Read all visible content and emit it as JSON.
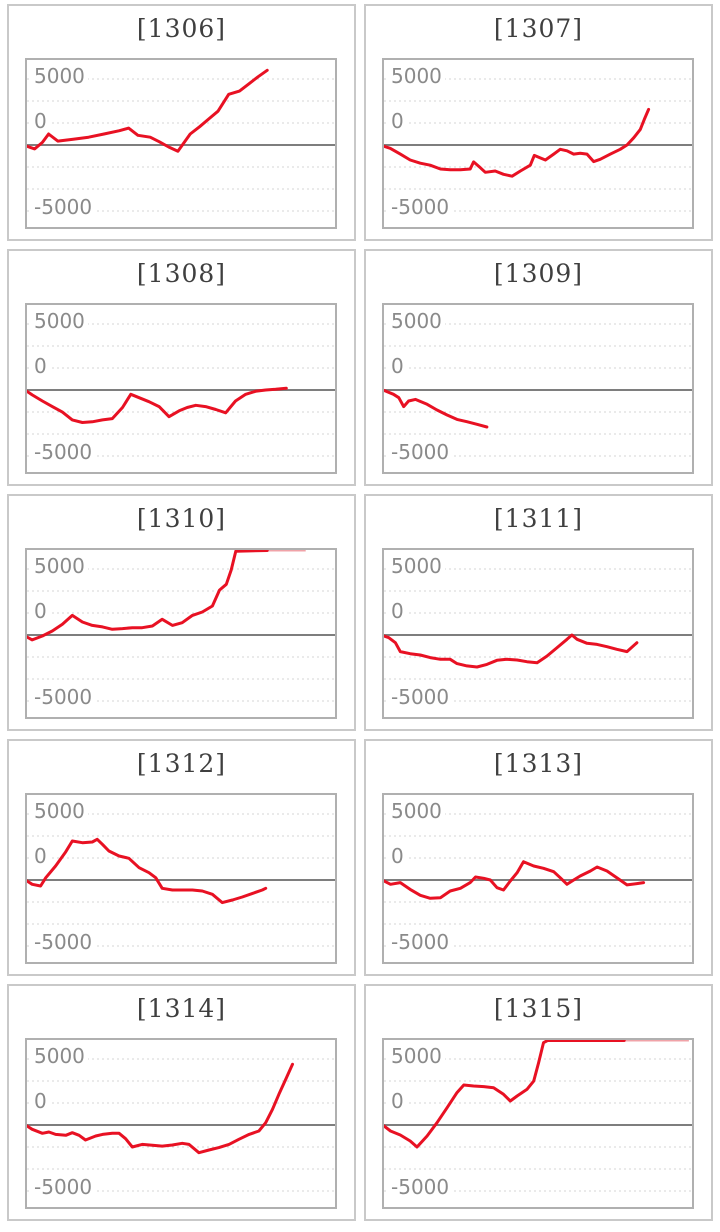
{
  "axis": {
    "y_labels": [
      "5000",
      "0",
      "-5000"
    ]
  },
  "colors": {
    "line": "#e81123",
    "line_clipped": "#f0a3a8",
    "grid": "#d4d4d4",
    "zero_line": "#7e7e7e",
    "plot_border": "#b0b0b0",
    "panel_border": "#c9c9c9",
    "label": "#8a8a8a",
    "title": "#3f3f3f",
    "background": "#ffffff"
  },
  "chart_data": [
    {
      "type": "line",
      "title": "[1306]",
      "y_ticks": [
        "5000",
        "0",
        "-5000"
      ],
      "ylim": [
        -6300,
        6500
      ],
      "grid": true,
      "points": [
        [
          0,
          -100
        ],
        [
          2.5,
          -300
        ],
        [
          5,
          200
        ],
        [
          7,
          850
        ],
        [
          10,
          300
        ],
        [
          15,
          450
        ],
        [
          20,
          600
        ],
        [
          25,
          850
        ],
        [
          30,
          1100
        ],
        [
          33,
          1300
        ],
        [
          36,
          750
        ],
        [
          40,
          600
        ],
        [
          43,
          250
        ],
        [
          46,
          -150
        ],
        [
          49,
          -480
        ],
        [
          53,
          850
        ],
        [
          56,
          1400
        ],
        [
          59,
          2000
        ],
        [
          62,
          2600
        ],
        [
          65.5,
          3900
        ],
        [
          69,
          4150
        ],
        [
          72,
          4700
        ],
        [
          75,
          5250
        ],
        [
          78,
          5750
        ]
      ]
    },
    {
      "type": "line",
      "title": "[1307]",
      "y_ticks": [
        "5000",
        "0",
        "-5000"
      ],
      "ylim": [
        -6300,
        6500
      ],
      "grid": true,
      "points": [
        [
          0,
          -100
        ],
        [
          2,
          -250
        ],
        [
          5.3,
          -700
        ],
        [
          8.5,
          -1150
        ],
        [
          11.8,
          -1400
        ],
        [
          15,
          -1550
        ],
        [
          18.3,
          -1850
        ],
        [
          21.5,
          -1900
        ],
        [
          24.8,
          -1900
        ],
        [
          28,
          -1850
        ],
        [
          29.1,
          -1300
        ],
        [
          31.3,
          -1750
        ],
        [
          32.9,
          -2100
        ],
        [
          36.1,
          -2000
        ],
        [
          38.8,
          -2250
        ],
        [
          41.6,
          -2400
        ],
        [
          44.3,
          -2000
        ],
        [
          47.5,
          -1550
        ],
        [
          48.8,
          -800
        ],
        [
          50.8,
          -1000
        ],
        [
          52.4,
          -1150
        ],
        [
          55.1,
          -700
        ],
        [
          57.2,
          -330
        ],
        [
          59.4,
          -450
        ],
        [
          61.6,
          -700
        ],
        [
          63.7,
          -640
        ],
        [
          65.9,
          -700
        ],
        [
          68.1,
          -1280
        ],
        [
          70.2,
          -1100
        ],
        [
          73.5,
          -700
        ],
        [
          76.7,
          -330
        ],
        [
          78.9,
          0
        ],
        [
          81.1,
          560
        ],
        [
          83.2,
          1200
        ],
        [
          84.5,
          1970
        ],
        [
          85.9,
          2740
        ]
      ]
    },
    {
      "type": "line",
      "title": "[1308]",
      "y_ticks": [
        "5000",
        "0",
        "-5000"
      ],
      "ylim": [
        -6300,
        6500
      ],
      "grid": true,
      "points": [
        [
          0,
          -100
        ],
        [
          1.7,
          -380
        ],
        [
          5,
          -850
        ],
        [
          8.2,
          -1280
        ],
        [
          11.5,
          -1700
        ],
        [
          14.7,
          -2300
        ],
        [
          18,
          -2500
        ],
        [
          21.2,
          -2450
        ],
        [
          24.5,
          -2300
        ],
        [
          27.7,
          -2200
        ],
        [
          31,
          -1350
        ],
        [
          33.7,
          -330
        ],
        [
          36.4,
          -590
        ],
        [
          39.6,
          -900
        ],
        [
          42.9,
          -1280
        ],
        [
          46.1,
          -2050
        ],
        [
          49.4,
          -1600
        ],
        [
          52,
          -1350
        ],
        [
          54.8,
          -1180
        ],
        [
          58,
          -1280
        ],
        [
          61.3,
          -1500
        ],
        [
          64.5,
          -1750
        ],
        [
          67.7,
          -850
        ],
        [
          71,
          -330
        ],
        [
          74.2,
          -100
        ],
        [
          77.5,
          0
        ],
        [
          80.7,
          50
        ],
        [
          84.2,
          130
        ]
      ]
    },
    {
      "type": "line",
      "title": "[1309]",
      "y_ticks": [
        "5000",
        "0",
        "-5000"
      ],
      "ylim": [
        -6300,
        6500
      ],
      "grid": true,
      "points": [
        [
          0,
          -30
        ],
        [
          3.1,
          -330
        ],
        [
          4.8,
          -590
        ],
        [
          6.4,
          -1280
        ],
        [
          8,
          -850
        ],
        [
          10.2,
          -720
        ],
        [
          14,
          -1100
        ],
        [
          17.2,
          -1540
        ],
        [
          20.5,
          -1920
        ],
        [
          23.7,
          -2260
        ],
        [
          26.9,
          -2440
        ],
        [
          30.2,
          -2640
        ],
        [
          33.4,
          -2850
        ]
      ]
    },
    {
      "type": "line",
      "title": "[1310]",
      "y_ticks": [
        "5000",
        "0",
        "-5000"
      ],
      "ylim": [
        -6300,
        6500
      ],
      "grid": true,
      "clipped_at_top": true,
      "points": [
        [
          0,
          -150
        ],
        [
          1.7,
          -380
        ],
        [
          5,
          -80
        ],
        [
          8.2,
          310
        ],
        [
          11.5,
          820
        ],
        [
          14.7,
          1510
        ],
        [
          18,
          1000
        ],
        [
          21.2,
          740
        ],
        [
          24.5,
          620
        ],
        [
          27.7,
          440
        ],
        [
          31,
          490
        ],
        [
          34.2,
          560
        ],
        [
          37.4,
          560
        ],
        [
          40.7,
          690
        ],
        [
          43.9,
          1210
        ],
        [
          47.2,
          740
        ],
        [
          50.4,
          950
        ],
        [
          53.7,
          1510
        ],
        [
          56.9,
          1770
        ],
        [
          60.2,
          2230
        ],
        [
          62.5,
          3450
        ],
        [
          64.7,
          3900
        ],
        [
          66.3,
          5000
        ],
        [
          67.8,
          6450
        ],
        [
          78,
          6500
        ]
      ],
      "clipped_points": [
        [
          78,
          6500
        ],
        [
          90.5,
          6500
        ]
      ]
    },
    {
      "type": "line",
      "title": "[1311]",
      "y_ticks": [
        "5000",
        "0",
        "-5000"
      ],
      "ylim": [
        -6300,
        6500
      ],
      "grid": true,
      "points": [
        [
          0,
          -80
        ],
        [
          1.5,
          -200
        ],
        [
          3.7,
          -590
        ],
        [
          5.3,
          -1280
        ],
        [
          8.5,
          -1440
        ],
        [
          11.8,
          -1540
        ],
        [
          15,
          -1740
        ],
        [
          18.3,
          -1870
        ],
        [
          21.5,
          -1870
        ],
        [
          23.7,
          -2200
        ],
        [
          26.9,
          -2380
        ],
        [
          30.2,
          -2460
        ],
        [
          33.4,
          -2260
        ],
        [
          36.7,
          -1950
        ],
        [
          39.9,
          -1870
        ],
        [
          43.2,
          -1920
        ],
        [
          46.4,
          -2050
        ],
        [
          49.7,
          -2130
        ],
        [
          52.9,
          -1620
        ],
        [
          56.2,
          -970
        ],
        [
          59.4,
          -330
        ],
        [
          61,
          0
        ],
        [
          62.7,
          -330
        ],
        [
          65.9,
          -640
        ],
        [
          69.2,
          -720
        ],
        [
          72.4,
          -900
        ],
        [
          75.6,
          -1100
        ],
        [
          78.9,
          -1280
        ],
        [
          82.1,
          -590
        ]
      ]
    },
    {
      "type": "line",
      "title": "[1312]",
      "y_ticks": [
        "5000",
        "0",
        "-5000"
      ],
      "ylim": [
        -6300,
        6500
      ],
      "grid": true,
      "points": [
        [
          0,
          -80
        ],
        [
          1.7,
          -330
        ],
        [
          4.4,
          -460
        ],
        [
          6.1,
          180
        ],
        [
          9.3,
          1080
        ],
        [
          12.6,
          2180
        ],
        [
          14.7,
          3000
        ],
        [
          18,
          2870
        ],
        [
          21.2,
          2920
        ],
        [
          22.8,
          3130
        ],
        [
          24.5,
          2740
        ],
        [
          26.6,
          2230
        ],
        [
          29.9,
          1850
        ],
        [
          33.1,
          1670
        ],
        [
          36.4,
          950
        ],
        [
          39.6,
          560
        ],
        [
          41.8,
          180
        ],
        [
          43.9,
          -640
        ],
        [
          47.2,
          -770
        ],
        [
          50.4,
          -770
        ],
        [
          53.7,
          -770
        ],
        [
          56.9,
          -850
        ],
        [
          60.2,
          -1100
        ],
        [
          63.4,
          -1740
        ],
        [
          66.7,
          -1540
        ],
        [
          69.9,
          -1310
        ],
        [
          73.2,
          -1030
        ],
        [
          76.4,
          -770
        ],
        [
          77.5,
          -640
        ]
      ]
    },
    {
      "type": "line",
      "title": "[1313]",
      "y_ticks": [
        "5000",
        "0",
        "-5000"
      ],
      "ylim": [
        -6300,
        6500
      ],
      "grid": true,
      "points": [
        [
          0,
          -80
        ],
        [
          2.1,
          -330
        ],
        [
          5.3,
          -200
        ],
        [
          8.5,
          -720
        ],
        [
          11.8,
          -1180
        ],
        [
          15,
          -1410
        ],
        [
          18.3,
          -1360
        ],
        [
          21.5,
          -850
        ],
        [
          24.8,
          -640
        ],
        [
          28,
          -200
        ],
        [
          29.7,
          230
        ],
        [
          32.4,
          130
        ],
        [
          34.5,
          0
        ],
        [
          36.7,
          -590
        ],
        [
          38.8,
          -770
        ],
        [
          41,
          -80
        ],
        [
          43.2,
          560
        ],
        [
          45.3,
          1410
        ],
        [
          48.6,
          1080
        ],
        [
          51.8,
          900
        ],
        [
          55.1,
          640
        ],
        [
          57.2,
          180
        ],
        [
          59.4,
          -330
        ],
        [
          61.6,
          0
        ],
        [
          63.7,
          310
        ],
        [
          67,
          690
        ],
        [
          69.2,
          1000
        ],
        [
          72.4,
          690
        ],
        [
          75.6,
          180
        ],
        [
          78.9,
          -380
        ],
        [
          82.1,
          -280
        ],
        [
          84.3,
          -200
        ]
      ]
    },
    {
      "type": "line",
      "title": "[1314]",
      "y_ticks": [
        "5000",
        "0",
        "-5000"
      ],
      "ylim": [
        -6300,
        6500
      ],
      "grid": true,
      "points": [
        [
          0,
          -80
        ],
        [
          1.7,
          -330
        ],
        [
          5,
          -640
        ],
        [
          7.1,
          -540
        ],
        [
          9.3,
          -720
        ],
        [
          12.6,
          -790
        ],
        [
          14.7,
          -590
        ],
        [
          16.9,
          -790
        ],
        [
          19,
          -1150
        ],
        [
          22.3,
          -850
        ],
        [
          24.5,
          -720
        ],
        [
          27.7,
          -640
        ],
        [
          29.9,
          -640
        ],
        [
          32,
          -1050
        ],
        [
          34.2,
          -1690
        ],
        [
          37.4,
          -1490
        ],
        [
          40.7,
          -1560
        ],
        [
          43.9,
          -1620
        ],
        [
          47.2,
          -1540
        ],
        [
          50.4,
          -1410
        ],
        [
          52.6,
          -1490
        ],
        [
          55.8,
          -2130
        ],
        [
          59.1,
          -1920
        ],
        [
          62.3,
          -1740
        ],
        [
          65.6,
          -1490
        ],
        [
          68.8,
          -1100
        ],
        [
          72.1,
          -720
        ],
        [
          75.3,
          -460
        ],
        [
          77.5,
          180
        ],
        [
          79.7,
          1210
        ],
        [
          81.8,
          2360
        ],
        [
          84,
          3510
        ],
        [
          86.2,
          4670
        ]
      ]
    },
    {
      "type": "line",
      "title": "[1315]",
      "y_ticks": [
        "5000",
        "0",
        "-5000"
      ],
      "ylim": [
        -6300,
        6500
      ],
      "grid": true,
      "clipped_at_top": true,
      "points": [
        [
          0,
          -80
        ],
        [
          2.1,
          -460
        ],
        [
          5.3,
          -770
        ],
        [
          8.5,
          -1230
        ],
        [
          10.7,
          -1690
        ],
        [
          14,
          -850
        ],
        [
          17.2,
          180
        ],
        [
          20.5,
          1330
        ],
        [
          23.7,
          2490
        ],
        [
          25.9,
          3080
        ],
        [
          29.1,
          3000
        ],
        [
          32.4,
          2950
        ],
        [
          35.6,
          2870
        ],
        [
          38.8,
          2360
        ],
        [
          41,
          1850
        ],
        [
          43.2,
          2230
        ],
        [
          46.4,
          2740
        ],
        [
          48.6,
          3380
        ],
        [
          50.2,
          4790
        ],
        [
          51.8,
          6330
        ],
        [
          53.1,
          6500
        ],
        [
          78,
          6500
        ]
      ],
      "clipped_points": [
        [
          78,
          6500
        ],
        [
          99,
          6500
        ]
      ]
    }
  ]
}
